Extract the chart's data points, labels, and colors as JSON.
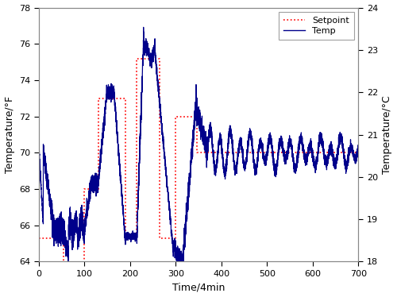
{
  "xlim": [
    0,
    700
  ],
  "ylim_f": [
    64,
    78
  ],
  "ylim_c": [
    18,
    24
  ],
  "xlabel": "Time/4min",
  "ylabel_left": "Temperature/°F",
  "ylabel_right": "Temperature/°C",
  "yticks_f": [
    64,
    66,
    68,
    70,
    72,
    74,
    76,
    78
  ],
  "yticks_c": [
    18,
    19,
    20,
    21,
    22,
    23,
    24
  ],
  "xticks": [
    0,
    100,
    200,
    300,
    400,
    500,
    600,
    700
  ],
  "setpoint_color": "#ff0000",
  "temp_color": "#00008b",
  "bg_color": "#ffffff",
  "legend_labels": [
    "Setpoint",
    "Temp"
  ],
  "setpoint_x": [
    0,
    55,
    55,
    100,
    100,
    130,
    130,
    190,
    190,
    215,
    215,
    265,
    265,
    300,
    300,
    347,
    347,
    700
  ],
  "setpoint_y": [
    65.3,
    65.3,
    56.0,
    56.0,
    68.0,
    68.0,
    73.0,
    73.0,
    65.3,
    65.3,
    75.2,
    75.2,
    65.3,
    65.3,
    72.0,
    72.0,
    70.0,
    70.0
  ]
}
